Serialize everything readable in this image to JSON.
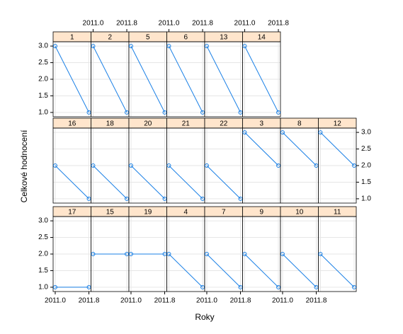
{
  "chart_data": {
    "type": "lattice",
    "xlabel": "Roky",
    "ylabel": "Celkové hodnocení",
    "x": [
      2011.0,
      2011.8
    ],
    "xlim": [
      2010.95,
      2011.85
    ],
    "xticks": [
      {
        "value": 2011.0,
        "label": "2011.0"
      },
      {
        "value": 2011.8,
        "label": "2011.8"
      }
    ],
    "ylim": [
      0.87,
      3.13
    ],
    "yticks": [
      {
        "value": 1,
        "label": "1.0"
      },
      1.5,
      {
        "value": 2,
        "label": "2.0"
      },
      2.5,
      {
        "value": 3,
        "label": "3.0"
      }
    ],
    "grid": true,
    "color": "#1a80e6",
    "strip_color": "#ffe5cc",
    "panels": [
      [
        {
          "name": "1",
          "values": [
            3,
            1
          ]
        },
        {
          "name": "2",
          "values": [
            3,
            1
          ]
        },
        {
          "name": "5",
          "values": [
            3,
            1
          ]
        },
        {
          "name": "6",
          "values": [
            3,
            1
          ]
        },
        {
          "name": "13",
          "values": [
            3,
            1
          ]
        },
        {
          "name": "14",
          "values": [
            3,
            1
          ]
        }
      ],
      [
        {
          "name": "16",
          "values": [
            2,
            1
          ]
        },
        {
          "name": "18",
          "values": [
            2,
            1
          ]
        },
        {
          "name": "20",
          "values": [
            2,
            1
          ]
        },
        {
          "name": "21",
          "values": [
            2,
            1
          ]
        },
        {
          "name": "22",
          "values": [
            2,
            1
          ]
        },
        {
          "name": "3",
          "values": [
            3,
            2
          ]
        },
        {
          "name": "8",
          "values": [
            3,
            2
          ]
        },
        {
          "name": "12",
          "values": [
            3,
            2
          ]
        }
      ],
      [
        {
          "name": "17",
          "values": [
            1,
            1
          ]
        },
        {
          "name": "15",
          "values": [
            2,
            2
          ]
        },
        {
          "name": "19",
          "values": [
            2,
            2
          ]
        },
        {
          "name": "4",
          "values": [
            2,
            1
          ]
        },
        {
          "name": "7",
          "values": [
            2,
            1
          ]
        },
        {
          "name": "9",
          "values": [
            2,
            1
          ]
        },
        {
          "name": "10",
          "values": [
            2,
            1
          ]
        },
        {
          "name": "11",
          "values": [
            2,
            1
          ]
        }
      ]
    ]
  }
}
